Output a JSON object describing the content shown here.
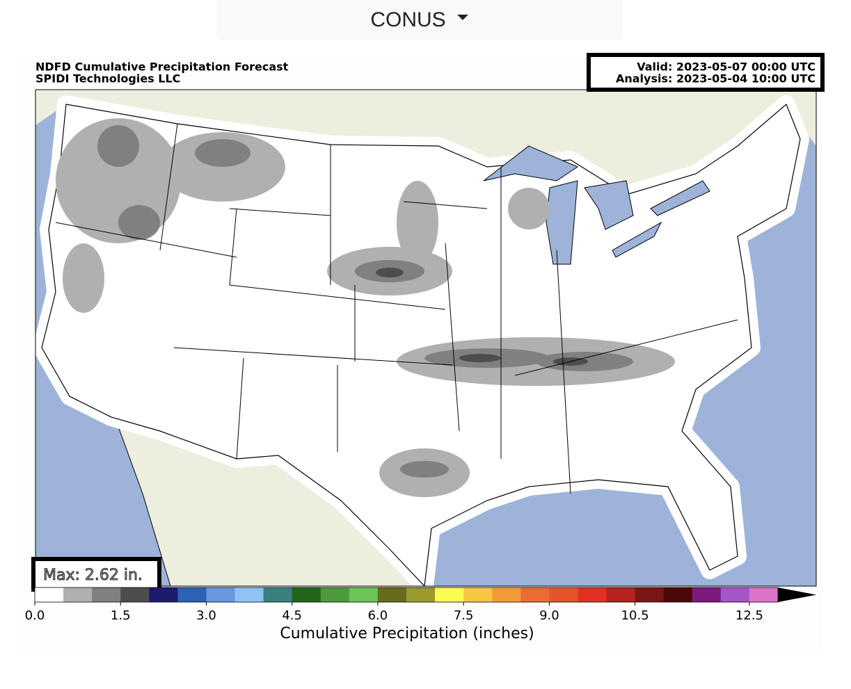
{
  "dropdown": {
    "label": "CONUS"
  },
  "map": {
    "title": "NDFD Cumulative Precipitation Forecast",
    "subtitle": "SPIDI Technologies LLC",
    "valid": "Valid: 2023-05-07 00:00 UTC",
    "analysis": "Analysis: 2023-05-04 10:00 UTC",
    "max_label": "Max: 2.62 in."
  },
  "colorbar": {
    "label": "Cumulative Precipitation (inches)",
    "bounds": [
      0,
      0.5,
      1,
      1.5,
      2,
      2.5,
      3,
      3.5,
      4,
      4.5,
      5,
      5.5,
      6,
      6.5,
      7,
      7.5,
      8,
      8.5,
      9,
      9.5,
      10,
      10.5,
      11,
      11.5,
      12,
      12.5,
      13
    ],
    "colors": [
      "#ffffff",
      "#b0b0b0",
      "#808080",
      "#4d4d4d",
      "#1c1c6b",
      "#2e62b2",
      "#6a97de",
      "#8fc3f5",
      "#3b8080",
      "#23641c",
      "#4c9a3c",
      "#6cc454",
      "#686a1e",
      "#9a9a2e",
      "#fbfb50",
      "#f6c743",
      "#f29b38",
      "#eb6b32",
      "#e6542c",
      "#e23024",
      "#b6221e",
      "#7a1616",
      "#4a0808",
      "#7d1a7e",
      "#a457c6",
      "#dc73c8"
    ],
    "extend_color": "#000000",
    "ticks": [
      {
        "value": 0,
        "label": "0.0"
      },
      1.5,
      {
        "value": 3,
        "label": "3.0"
      },
      4.5,
      {
        "value": 6,
        "label": "6.0"
      },
      7.5,
      {
        "value": 9,
        "label": "9.0"
      },
      10.5,
      12.5
    ]
  }
}
